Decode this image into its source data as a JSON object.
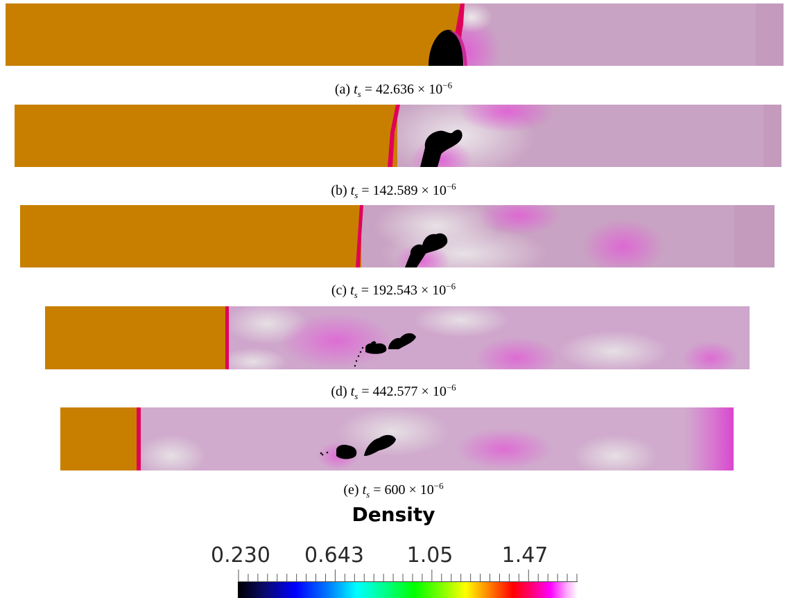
{
  "panels": [
    {
      "letter": "(a)",
      "variable": "t",
      "subscript": "s",
      "equals": "=",
      "mantissa": "42.636",
      "times": "×",
      "base": "10",
      "exponent": "−6"
    },
    {
      "letter": "(b)",
      "variable": "t",
      "subscript": "s",
      "equals": "=",
      "mantissa": "142.589",
      "times": "×",
      "base": "10",
      "exponent": "−6"
    },
    {
      "letter": "(c)",
      "variable": "t",
      "subscript": "s",
      "equals": "=",
      "mantissa": "192.543",
      "times": "×",
      "base": "10",
      "exponent": "−6"
    },
    {
      "letter": "(d)",
      "variable": "t",
      "subscript": "s",
      "equals": "=",
      "mantissa": "442.577",
      "times": "×",
      "base": "10",
      "exponent": "−6"
    },
    {
      "letter": "(e)",
      "variable": "t",
      "subscript": "s",
      "equals": "=",
      "mantissa": "600",
      "times": "×",
      "base": "10",
      "exponent": "−6"
    }
  ],
  "colorbar": {
    "title": "Density",
    "tick_labels": [
      "0.230",
      "0.643",
      "1.05",
      "1.47"
    ],
    "min": 0.23,
    "max": 1.7,
    "colormap": [
      "#000000",
      "#0000ff",
      "#00ffff",
      "#00ff00",
      "#ffff00",
      "#ff0000",
      "#ff00ff",
      "#ffffff"
    ]
  },
  "colors": {
    "driver_gas": "#c87f00",
    "ambient_gas": "#c9a3c3",
    "bubble": "#000000",
    "shock_front": "#e0005a",
    "compressed": "#e15ed6",
    "expanded": "#e4dfe0"
  }
}
